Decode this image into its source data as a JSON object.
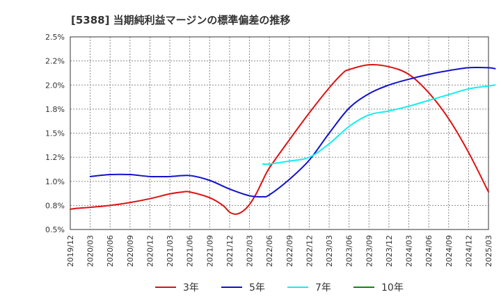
{
  "chart_data": {
    "type": "line",
    "title": "[5388]  当期純利益マージンの標準偏差の推移",
    "ylim": [
      0.005,
      0.025
    ],
    "yticks": [
      {
        "value": 0.005,
        "label": "0.5%"
      },
      {
        "value": 0.0075,
        "label": "0.8%"
      },
      {
        "value": 0.01,
        "label": "1.0%"
      },
      {
        "value": 0.0125,
        "label": "1.2%"
      },
      {
        "value": 0.015,
        "label": "1.5%"
      },
      {
        "value": 0.0175,
        "label": "1.8%"
      },
      {
        "value": 0.02,
        "label": "2.0%"
      },
      {
        "value": 0.0225,
        "label": "2.2%"
      },
      {
        "value": 0.025,
        "label": "2.5%"
      }
    ],
    "xticks": [
      "2019/12",
      "2020/03",
      "2020/06",
      "2020/09",
      "2020/12",
      "2021/03",
      "2021/06",
      "2021/09",
      "2021/12",
      "2022/03",
      "2022/06",
      "2022/09",
      "2022/12",
      "2023/03",
      "2023/06",
      "2023/09",
      "2023/12",
      "2024/03",
      "2024/06",
      "2024/09",
      "2024/12",
      "2025/03"
    ],
    "grid": true,
    "legend_position": "bottom",
    "series": [
      {
        "name": "3年",
        "color": "#dd1111",
        "points": [
          [
            "2019/12",
            0.0071
          ],
          [
            "2020/01",
            0.0072
          ],
          [
            "2020/03",
            0.0073
          ],
          [
            "2020/06",
            0.0075
          ],
          [
            "2020/09",
            0.0078
          ],
          [
            "2020/12",
            0.0082
          ],
          [
            "2021/03",
            0.0087
          ],
          [
            "2021/05",
            0.0089
          ],
          [
            "2021/06",
            0.0089
          ],
          [
            "2021/09",
            0.0083
          ],
          [
            "2021/11",
            0.0075
          ],
          [
            "2021/12",
            0.0068
          ],
          [
            "2022/01",
            0.0066
          ],
          [
            "2022/02",
            0.0069
          ],
          [
            "2022/03",
            0.0076
          ],
          [
            "2022/04",
            0.0087
          ],
          [
            "2022/05",
            0.0101
          ],
          [
            "2022/06",
            0.0114
          ],
          [
            "2022/09",
            0.0143
          ],
          [
            "2022/12",
            0.0171
          ],
          [
            "2023/03",
            0.0197
          ],
          [
            "2023/05",
            0.0212
          ],
          [
            "2023/06",
            0.0216
          ],
          [
            "2023/09",
            0.0221
          ],
          [
            "2023/12",
            0.0219
          ],
          [
            "2024/03",
            0.0211
          ],
          [
            "2024/06",
            0.0192
          ],
          [
            "2024/09",
            0.0165
          ],
          [
            "2024/12",
            0.013
          ],
          [
            "2025/03",
            0.0089
          ]
        ]
      },
      {
        "name": "5年",
        "color": "#1111cc",
        "points": [
          [
            "2020/03",
            0.0105
          ],
          [
            "2020/06",
            0.0107
          ],
          [
            "2020/09",
            0.0107
          ],
          [
            "2020/12",
            0.0105
          ],
          [
            "2021/03",
            0.0105
          ],
          [
            "2021/06",
            0.0106
          ],
          [
            "2021/09",
            0.0101
          ],
          [
            "2021/12",
            0.0092
          ],
          [
            "2022/03",
            0.0085
          ],
          [
            "2022/05",
            0.0084
          ],
          [
            "2022/06",
            0.0086
          ],
          [
            "2022/09",
            0.0102
          ],
          [
            "2022/12",
            0.0122
          ],
          [
            "2023/03",
            0.015
          ],
          [
            "2023/06",
            0.0176
          ],
          [
            "2023/09",
            0.0191
          ],
          [
            "2023/12",
            0.02
          ],
          [
            "2024/03",
            0.0206
          ],
          [
            "2024/06",
            0.0211
          ],
          [
            "2024/09",
            0.0215
          ],
          [
            "2024/12",
            0.0218
          ],
          [
            "2025/03",
            0.0218
          ],
          [
            "2025/04",
            0.0217
          ]
        ]
      },
      {
        "name": "7年",
        "color": "#11eeee",
        "points": [
          [
            "2022/05",
            0.0118
          ],
          [
            "2022/06",
            0.0118
          ],
          [
            "2022/09",
            0.0121
          ],
          [
            "2022/12",
            0.0125
          ],
          [
            "2023/03",
            0.0139
          ],
          [
            "2023/06",
            0.0157
          ],
          [
            "2023/09",
            0.0169
          ],
          [
            "2023/12",
            0.0173
          ],
          [
            "2024/03",
            0.0178
          ],
          [
            "2024/06",
            0.0184
          ],
          [
            "2024/09",
            0.019
          ],
          [
            "2024/12",
            0.0196
          ],
          [
            "2025/03",
            0.0199
          ],
          [
            "2025/04",
            0.02
          ]
        ]
      },
      {
        "name": "10年",
        "color": "#118811",
        "points": []
      }
    ]
  }
}
